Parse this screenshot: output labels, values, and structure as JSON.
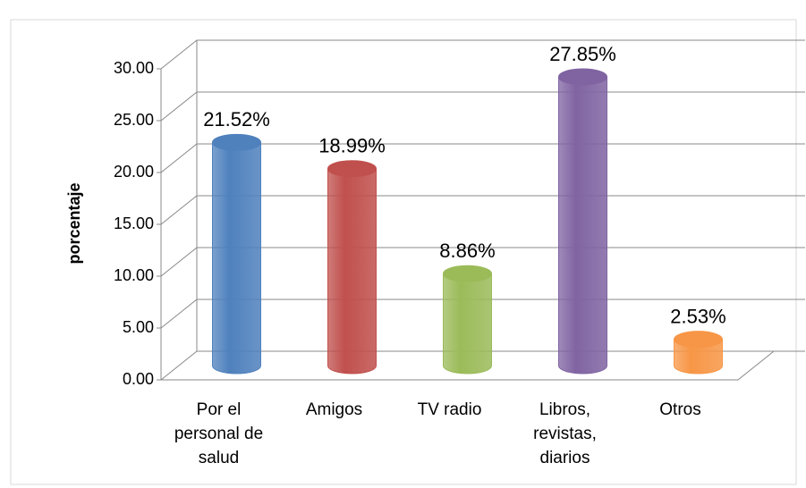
{
  "chart_data": {
    "type": "bar3d",
    "y_label": "porcentaje",
    "categories": [
      "Por el personal de salud",
      "Amigos",
      "TV radio",
      "Libros, revistas, diarios",
      "Otros"
    ],
    "series": [
      {
        "name": null,
        "colors": [
          "#4f81bd",
          "#c0504d",
          "#9bbb59",
          "#8064a2",
          "#f79646"
        ],
        "values": [
          21.52,
          18.99,
          8.86,
          27.85,
          2.53
        ],
        "value_labels": [
          "21.52%",
          "18.99%",
          "8.86%",
          "27.85%",
          "2.53%"
        ]
      }
    ],
    "ylim": [
      0,
      30
    ],
    "yticks": [
      {
        "value": 0,
        "label": "0.00"
      },
      {
        "value": 5,
        "label": "5.00"
      },
      {
        "value": 10,
        "label": "10.00"
      },
      {
        "value": 15,
        "label": "15.00"
      },
      {
        "value": 20,
        "label": "20.00"
      },
      {
        "value": 25,
        "label": "25.00"
      },
      {
        "value": 30,
        "label": "30.00"
      }
    ],
    "grid": true
  }
}
